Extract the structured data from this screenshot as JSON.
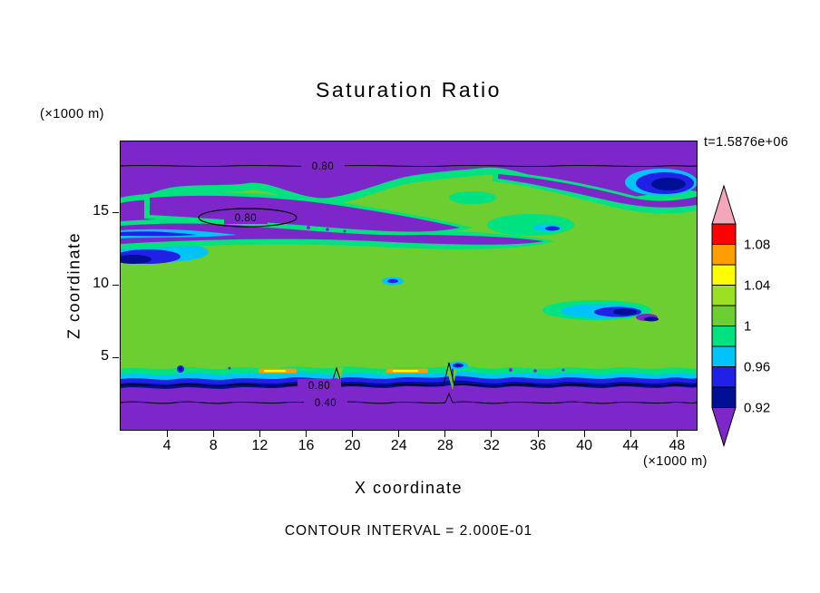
{
  "colors": {
    "background": "#FFFFFF",
    "frame": "#000000",
    "purple": "#7D26C9",
    "navy": "#000F96",
    "blue": "#2020E6",
    "cyan": "#00C3F7",
    "spring_green": "#00E17F",
    "green": "#6CCE31",
    "yellow_green": "#9BE022",
    "yellow": "#FFFF00",
    "orange": "#FF9E00",
    "red": "#FF0000",
    "pink": "#F4A7BB"
  },
  "chart_data": {
    "type": "heatmap",
    "subtype": "filled_contour_plot",
    "title": "Saturation Ratio",
    "xlabel": "X coordinate",
    "ylabel": "Z coordinate",
    "x_units_label": "(×1000 m)",
    "y_units_label": "(×1000 m)",
    "time_annotation": "t=1.5876e+06",
    "contour_interval_note": "CONTOUR INTERVAL = 2.000E-01",
    "x_ticks": [
      "4",
      "8",
      "12",
      "16",
      "20",
      "24",
      "28",
      "32",
      "36",
      "40",
      "44",
      "48"
    ],
    "y_ticks": [
      "5",
      "10",
      "15"
    ],
    "x_range_x1000m": [
      0,
      49.8
    ],
    "y_range_x1000m": [
      0,
      19.9
    ],
    "line_contour_interval": 0.2,
    "contour_line_labels": [
      "0.80",
      "0.80",
      "0.80",
      "0.40"
    ],
    "field_summary": "Saturation ratio near 1 (green) through mid-levels; values below 0.92 (purple) in top band and below ~3.5 km; blue/cyan pockets near boundaries; small orange/yellow streaks just above the low-level dry layer.",
    "colorbar": {
      "position": "right",
      "fill_contour_interval": 0.02,
      "labels": [
        "1.08",
        "1.04",
        "1",
        "0.96",
        "0.92"
      ],
      "segments": [
        {
          "range": "> 1.10",
          "color": "#F4A7BB",
          "arrow": "up"
        },
        {
          "range": "1.08 - 1.10",
          "color": "#FF0000"
        },
        {
          "range": "1.06 - 1.08",
          "color": "#FF9E00"
        },
        {
          "range": "1.04 - 1.06",
          "color": "#FFFF00"
        },
        {
          "range": "1.02 - 1.04",
          "color": "#9BE022"
        },
        {
          "range": "1.00 - 1.02",
          "color": "#6CCE31"
        },
        {
          "range": "0.98 - 1.00",
          "color": "#00E17F"
        },
        {
          "range": "0.96 - 0.98",
          "color": "#00C3F7"
        },
        {
          "range": "0.94 - 0.96",
          "color": "#2020E6"
        },
        {
          "range": "0.92 - 0.94",
          "color": "#000F96"
        },
        {
          "range": "< 0.92",
          "color": "#7D26C9",
          "arrow": "down"
        }
      ]
    }
  }
}
